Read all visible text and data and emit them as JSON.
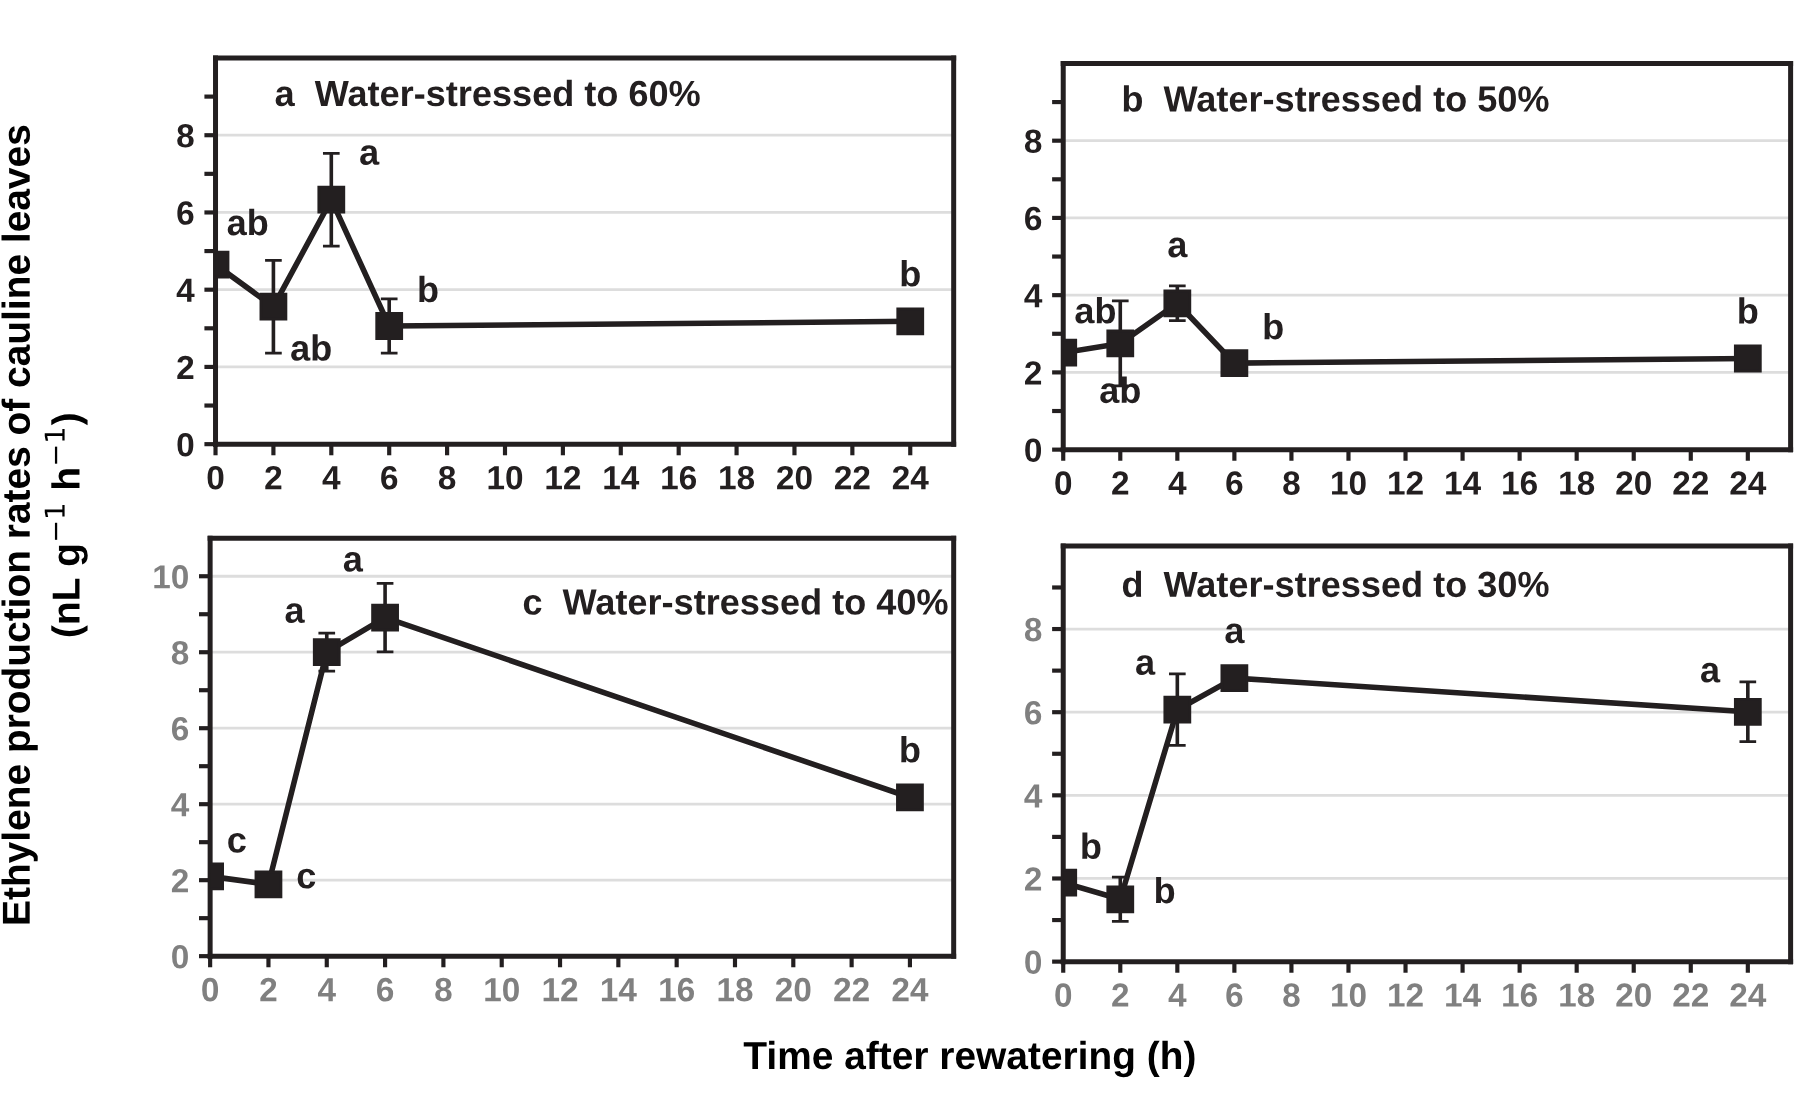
{
  "chart_data": [
    {
      "type": "line",
      "title": "a  Water-stressed to 60%",
      "ylabel": "Ethylene production rates of cauline leaves\n(nL g$^{−1}$ h$^{−1}$)",
      "x": [
        0,
        2,
        4,
        6,
        24
      ],
      "series": [
        {
          "color": "#231f20",
          "values": [
            4.65,
            3.56,
            6.33,
            3.06,
            3.18
          ],
          "errors": [
            null,
            1.2,
            1.2,
            0.7,
            null
          ]
        }
      ],
      "xlim": [
        0,
        25.5
      ],
      "xticks": [
        0,
        2,
        4,
        6,
        8,
        10,
        12,
        14,
        16,
        18,
        20,
        22,
        24
      ],
      "ylim": [
        0,
        10
      ],
      "yticks": [
        0,
        {
          "value": 1,
          "label": null
        },
        2,
        {
          "value": 3,
          "label": null
        },
        4,
        {
          "value": 5,
          "label": null
        },
        6,
        {
          "value": 7,
          "label": null
        },
        8,
        {
          "value": 9,
          "label": null
        }
      ],
      "grid": "y",
      "marker": "square",
      "line_style": "solid",
      "legend": false,
      "annotations": [
        {
          "text": "ab",
          "x": 0,
          "y": 4.65
        },
        {
          "text": "ab",
          "x": 2,
          "y": 3.56
        },
        {
          "text": "a",
          "x": 4,
          "y": 6.33
        },
        {
          "text": "b",
          "x": 6,
          "y": 3.06
        },
        {
          "text": "b",
          "x": 24,
          "y": 3.18
        }
      ]
    },
    {
      "type": "line",
      "title": "b  Water-stressed to 50%",
      "x": [
        0,
        2,
        4,
        6,
        24
      ],
      "series": [
        {
          "color": "#231f20",
          "values": [
            2.51,
            2.75,
            3.79,
            2.24,
            2.36
          ],
          "errors": [
            null,
            1.1,
            0.45,
            null,
            0.3
          ]
        }
      ],
      "xlim": [
        0,
        25.5
      ],
      "xticks": [
        0,
        2,
        4,
        6,
        8,
        10,
        12,
        14,
        16,
        18,
        20,
        22,
        24
      ],
      "ylim": [
        0,
        10
      ],
      "yticks": [
        0,
        {
          "value": 1,
          "label": null
        },
        2,
        {
          "value": 3,
          "label": null
        },
        4,
        {
          "value": 5,
          "label": null
        },
        6,
        {
          "value": 7,
          "label": null
        },
        8,
        {
          "value": 9,
          "label": null
        }
      ],
      "grid": "y",
      "marker": "square",
      "line_style": "solid",
      "legend": false,
      "annotations": [
        {
          "text": "ab",
          "x": 0,
          "y": 2.51
        },
        {
          "text": "ab",
          "x": 2,
          "y": 2.75
        },
        {
          "text": "a",
          "x": 4,
          "y": 3.79
        },
        {
          "text": "b",
          "x": 6,
          "y": 2.24
        },
        {
          "text": "b",
          "x": 24,
          "y": 2.36
        }
      ]
    },
    {
      "type": "line",
      "title": "c  Water-stressed to 40%",
      "xlabel": "Time after rewatering (h)",
      "x": [
        0,
        2,
        4,
        6,
        24
      ],
      "series": [
        {
          "color": "#231f20",
          "values": [
            2.1,
            1.89,
            8.0,
            8.91,
            4.18
          ],
          "errors": [
            null,
            0.2,
            0.5,
            0.9,
            0.25
          ]
        }
      ],
      "xlim": [
        0,
        25.5
      ],
      "xticks": [
        0,
        2,
        4,
        6,
        8,
        10,
        12,
        14,
        16,
        18,
        20,
        22,
        24
      ],
      "ylim": [
        0,
        11
      ],
      "yticks": [
        0,
        {
          "value": 1,
          "label": null
        },
        2,
        {
          "value": 3,
          "label": null
        },
        4,
        {
          "value": 5,
          "label": null
        },
        6,
        {
          "value": 7,
          "label": null
        },
        8,
        {
          "value": 9,
          "label": null
        },
        10
      ],
      "grid": "y",
      "marker": "square",
      "line_style": "solid",
      "legend": false,
      "annotations": [
        {
          "text": "c",
          "x": 0,
          "y": 2.1
        },
        {
          "text": "c",
          "x": 2,
          "y": 1.89
        },
        {
          "text": "a",
          "x": 4,
          "y": 8.0
        },
        {
          "text": "a",
          "x": 6,
          "y": 8.91
        },
        {
          "text": "b",
          "x": 24,
          "y": 4.18
        }
      ]
    },
    {
      "type": "line",
      "title": "d  Water-stressed to 30%",
      "x": [
        0,
        2,
        4,
        6,
        24
      ],
      "series": [
        {
          "color": "#231f20",
          "values": [
            1.9,
            1.5,
            6.06,
            6.82,
            6.01
          ],
          "errors": [
            null,
            0.53,
            0.86,
            null,
            0.72
          ]
        }
      ],
      "xlim": [
        0,
        25.5
      ],
      "xticks": [
        0,
        2,
        4,
        6,
        8,
        10,
        12,
        14,
        16,
        18,
        20,
        22,
        24
      ],
      "ylim": [
        0,
        10
      ],
      "yticks": [
        0,
        {
          "value": 1,
          "label": null
        },
        2,
        {
          "value": 3,
          "label": null
        },
        4,
        {
          "value": 5,
          "label": null
        },
        6,
        {
          "value": 7,
          "label": null
        },
        8,
        {
          "value": 9,
          "label": null
        }
      ],
      "grid": "y",
      "marker": "square",
      "line_style": "solid",
      "legend": false,
      "annotations": [
        {
          "text": "b",
          "x": 0,
          "y": 1.9
        },
        {
          "text": "b",
          "x": 2,
          "y": 1.5
        },
        {
          "text": "a",
          "x": 4,
          "y": 6.06
        },
        {
          "text": "a",
          "x": 6,
          "y": 6.82
        },
        {
          "text": "a",
          "x": 24,
          "y": 6.01
        }
      ]
    }
  ]
}
